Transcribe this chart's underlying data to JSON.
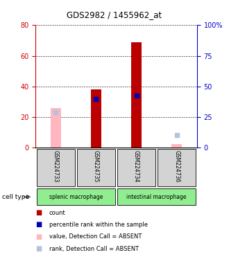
{
  "title": "GDS2982 / 1455962_at",
  "samples": [
    "GSM224733",
    "GSM224735",
    "GSM224734",
    "GSM224736"
  ],
  "cell_types": [
    "splenic macrophage",
    "intestinal macrophage"
  ],
  "count_values": [
    null,
    38,
    69,
    null
  ],
  "rank_values": [
    null,
    39.5,
    42.5,
    null
  ],
  "absent_value": [
    26,
    null,
    null,
    2.5
  ],
  "absent_rank": [
    29,
    null,
    null,
    10
  ],
  "ylim_left": [
    0,
    80
  ],
  "ylim_right": [
    0,
    100
  ],
  "yticks_left": [
    0,
    20,
    40,
    60,
    80
  ],
  "yticks_right": [
    0,
    25,
    50,
    75,
    100
  ],
  "ytick_labels_right": [
    "0",
    "25",
    "50",
    "75",
    "100%"
  ],
  "bar_width": 0.25,
  "left_axis_color": "#cc0000",
  "right_axis_color": "#0000cc",
  "count_color": "#bb0000",
  "rank_color": "#0000bb",
  "absent_value_color": "#ffb6c1",
  "absent_rank_color": "#b0c4de",
  "sample_bg": "#d3d3d3",
  "cell_type_bg": "#90ee90",
  "legend_labels": [
    "count",
    "percentile rank within the sample",
    "value, Detection Call = ABSENT",
    "rank, Detection Call = ABSENT"
  ],
  "legend_colors": [
    "#bb0000",
    "#0000bb",
    "#ffb6c1",
    "#b0c4de"
  ]
}
